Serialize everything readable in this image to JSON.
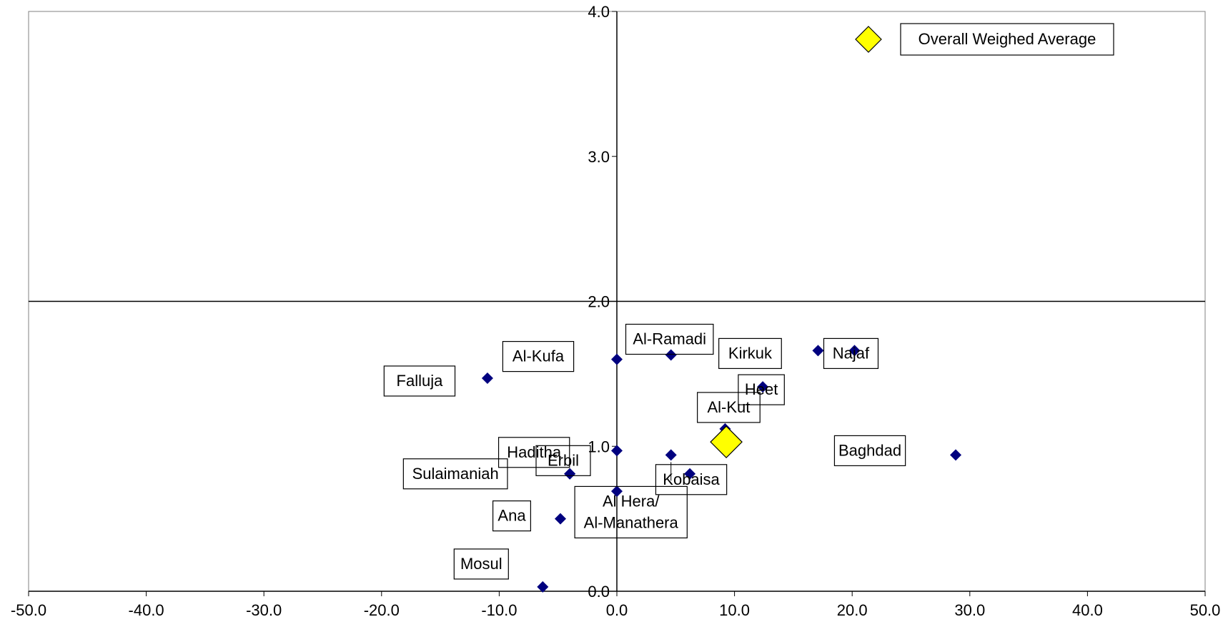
{
  "chart_data": {
    "type": "scatter",
    "xlim": [
      -50,
      50
    ],
    "ylim": [
      0,
      4
    ],
    "x_ticks": [
      "-50.0",
      "-40.0",
      "-30.0",
      "-20.0",
      "-10.0",
      "0.0",
      "10.0",
      "20.0",
      "30.0",
      "40.0",
      "50.0"
    ],
    "y_ticks": [
      "0.0",
      "1.0",
      "2.0",
      "3.0",
      "4.0"
    ],
    "reference_line_y": 2.0,
    "grid": false,
    "legend_position": "top-right",
    "legend_label": "Overall Weighed Average",
    "marker_color": "#00007F",
    "highlight_color": "#FFFF00",
    "points": [
      {
        "label": "Mosul",
        "x": -6.3,
        "y": 0.03
      },
      {
        "label": "Ana",
        "x": -4.8,
        "y": 0.5
      },
      {
        "label": "Haditha",
        "x": -4.0,
        "y": 0.81
      },
      {
        "label": "Sulaimaniah",
        "x": -4.0,
        "y": 0.81
      },
      {
        "label": "Erbil",
        "x": 0.0,
        "y": 0.97
      },
      {
        "label": "Al-Kufa",
        "x": 0.0,
        "y": 1.6
      },
      {
        "label": "Falluja",
        "x": -11.0,
        "y": 1.47
      },
      {
        "label": "",
        "x": 0.0,
        "y": 0.69
      },
      {
        "label": "Al Hera/ Al-Manathera",
        "x": 4.6,
        "y": 0.94
      },
      {
        "label": "Kobaisa",
        "x": 6.2,
        "y": 0.81
      },
      {
        "label": "Al-Ramadi",
        "x": 4.6,
        "y": 1.63
      },
      {
        "label": "Al-Kut",
        "x": 9.2,
        "y": 1.12
      },
      {
        "label": "Heet",
        "x": 12.4,
        "y": 1.41
      },
      {
        "label": "Kirkuk",
        "x": 17.1,
        "y": 1.66
      },
      {
        "label": "Najaf",
        "x": 20.2,
        "y": 1.66
      },
      {
        "label": "Baghdad",
        "x": 28.8,
        "y": 0.94
      }
    ],
    "average_point": {
      "label": "Overall Weighed Average",
      "x": 9.3,
      "y": 1.03
    }
  }
}
